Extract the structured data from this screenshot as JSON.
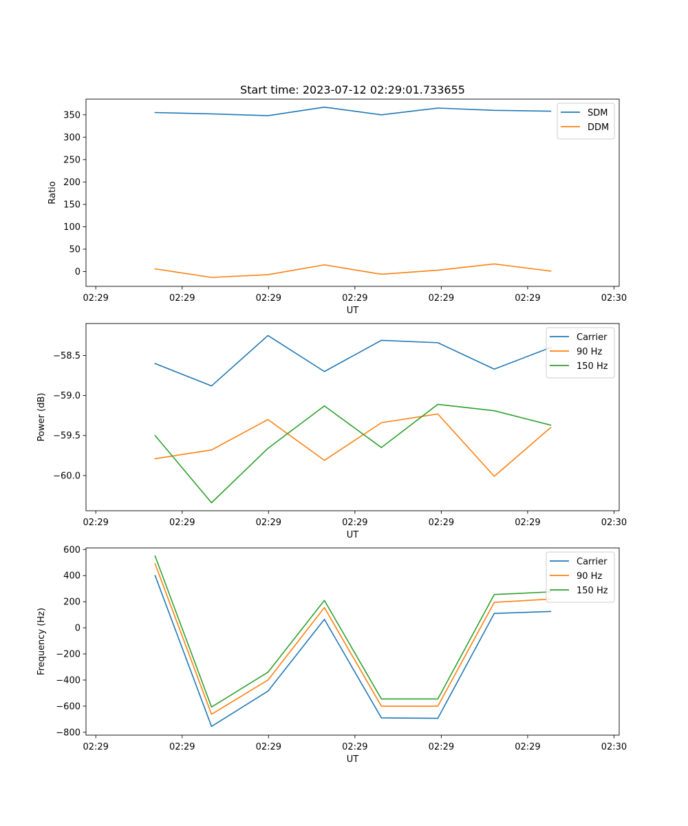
{
  "figure_title": "Start time: 2023-07-12 02:29:01.733655",
  "x_tick_labels": [
    "02:29",
    "02:29",
    "02:29",
    "02:29",
    "02:29",
    "02:29",
    "02:30"
  ],
  "chart_data": [
    {
      "type": "line",
      "title": "Start time: 2023-07-12 02:29:01.733655",
      "xlabel": "UT",
      "ylabel": "Ratio",
      "xlim": [
        -0.6,
        8.66
      ],
      "x_ticks": [
        -0.43,
        1.07,
        2.57,
        4.07,
        5.57,
        7.07,
        8.57
      ],
      "x": [
        0.6,
        1.58,
        2.56,
        3.54,
        4.53,
        5.51,
        6.49,
        7.47
      ],
      "ylim": [
        -33,
        385
      ],
      "y_ticks": [
        0,
        50,
        100,
        150,
        200,
        250,
        300,
        350
      ],
      "y_tick_labels": [
        "0",
        "50",
        "100",
        "150",
        "200",
        "250",
        "300",
        "350"
      ],
      "legend_position": "top-right",
      "series": [
        {
          "name": "SDM",
          "color": "#1f77b4",
          "values": [
            355,
            352,
            348,
            367,
            350,
            365,
            360,
            358
          ]
        },
        {
          "name": "DDM",
          "color": "#ff7f0e",
          "values": [
            6,
            -13,
            -7,
            15,
            -6,
            3,
            17,
            1
          ]
        }
      ]
    },
    {
      "type": "line",
      "title": "",
      "xlabel": "UT",
      "ylabel": "Power (dB)",
      "xlim": [
        -0.6,
        8.66
      ],
      "x_ticks": [
        -0.43,
        1.07,
        2.57,
        4.07,
        5.57,
        7.07,
        8.57
      ],
      "x": [
        0.6,
        1.58,
        2.56,
        3.54,
        4.53,
        5.51,
        6.49,
        7.47
      ],
      "ylim": [
        -60.44,
        -58.1
      ],
      "y_ticks": [
        -60.0,
        -59.5,
        -59.0,
        -58.5
      ],
      "y_tick_labels": [
        "−60.0",
        "−59.5",
        "−59.0",
        "−58.5"
      ],
      "legend_position": "top-right",
      "series": [
        {
          "name": "Carrier",
          "color": "#1f77b4",
          "values": [
            -58.6,
            -58.88,
            -58.25,
            -58.7,
            -58.31,
            -58.34,
            -58.67,
            -58.4
          ]
        },
        {
          "name": "90 Hz",
          "color": "#ff7f0e",
          "values": [
            -59.79,
            -59.68,
            -59.3,
            -59.81,
            -59.34,
            -59.23,
            -60.01,
            -59.4
          ]
        },
        {
          "name": "150 Hz",
          "color": "#2ca02c",
          "values": [
            -59.5,
            -60.34,
            -59.66,
            -59.13,
            -59.65,
            -59.11,
            -59.19,
            -59.37
          ]
        }
      ]
    },
    {
      "type": "line",
      "title": "",
      "xlabel": "UT",
      "ylabel": "Frequency (Hz)",
      "xlim": [
        -0.6,
        8.66
      ],
      "x_ticks": [
        -0.43,
        1.07,
        2.57,
        4.07,
        5.57,
        7.07,
        8.57
      ],
      "x": [
        0.6,
        1.58,
        2.56,
        3.54,
        4.53,
        5.51,
        6.49,
        7.47
      ],
      "ylim": [
        -822,
        612
      ],
      "y_ticks": [
        -800,
        -600,
        -400,
        -200,
        0,
        200,
        400,
        600
      ],
      "y_tick_labels": [
        "−800",
        "−600",
        "−400",
        "−200",
        "0",
        "200",
        "400",
        "600"
      ],
      "legend_position": "top-right",
      "series": [
        {
          "name": "Carrier",
          "color": "#1f77b4",
          "values": [
            400,
            -755,
            -485,
            65,
            -690,
            -693,
            110,
            125
          ]
        },
        {
          "name": "90 Hz",
          "color": "#ff7f0e",
          "values": [
            490,
            -662,
            -400,
            155,
            -600,
            -600,
            195,
            220
          ]
        },
        {
          "name": "150 Hz",
          "color": "#2ca02c",
          "values": [
            550,
            -607,
            -340,
            210,
            -545,
            -545,
            255,
            275
          ]
        }
      ]
    }
  ]
}
